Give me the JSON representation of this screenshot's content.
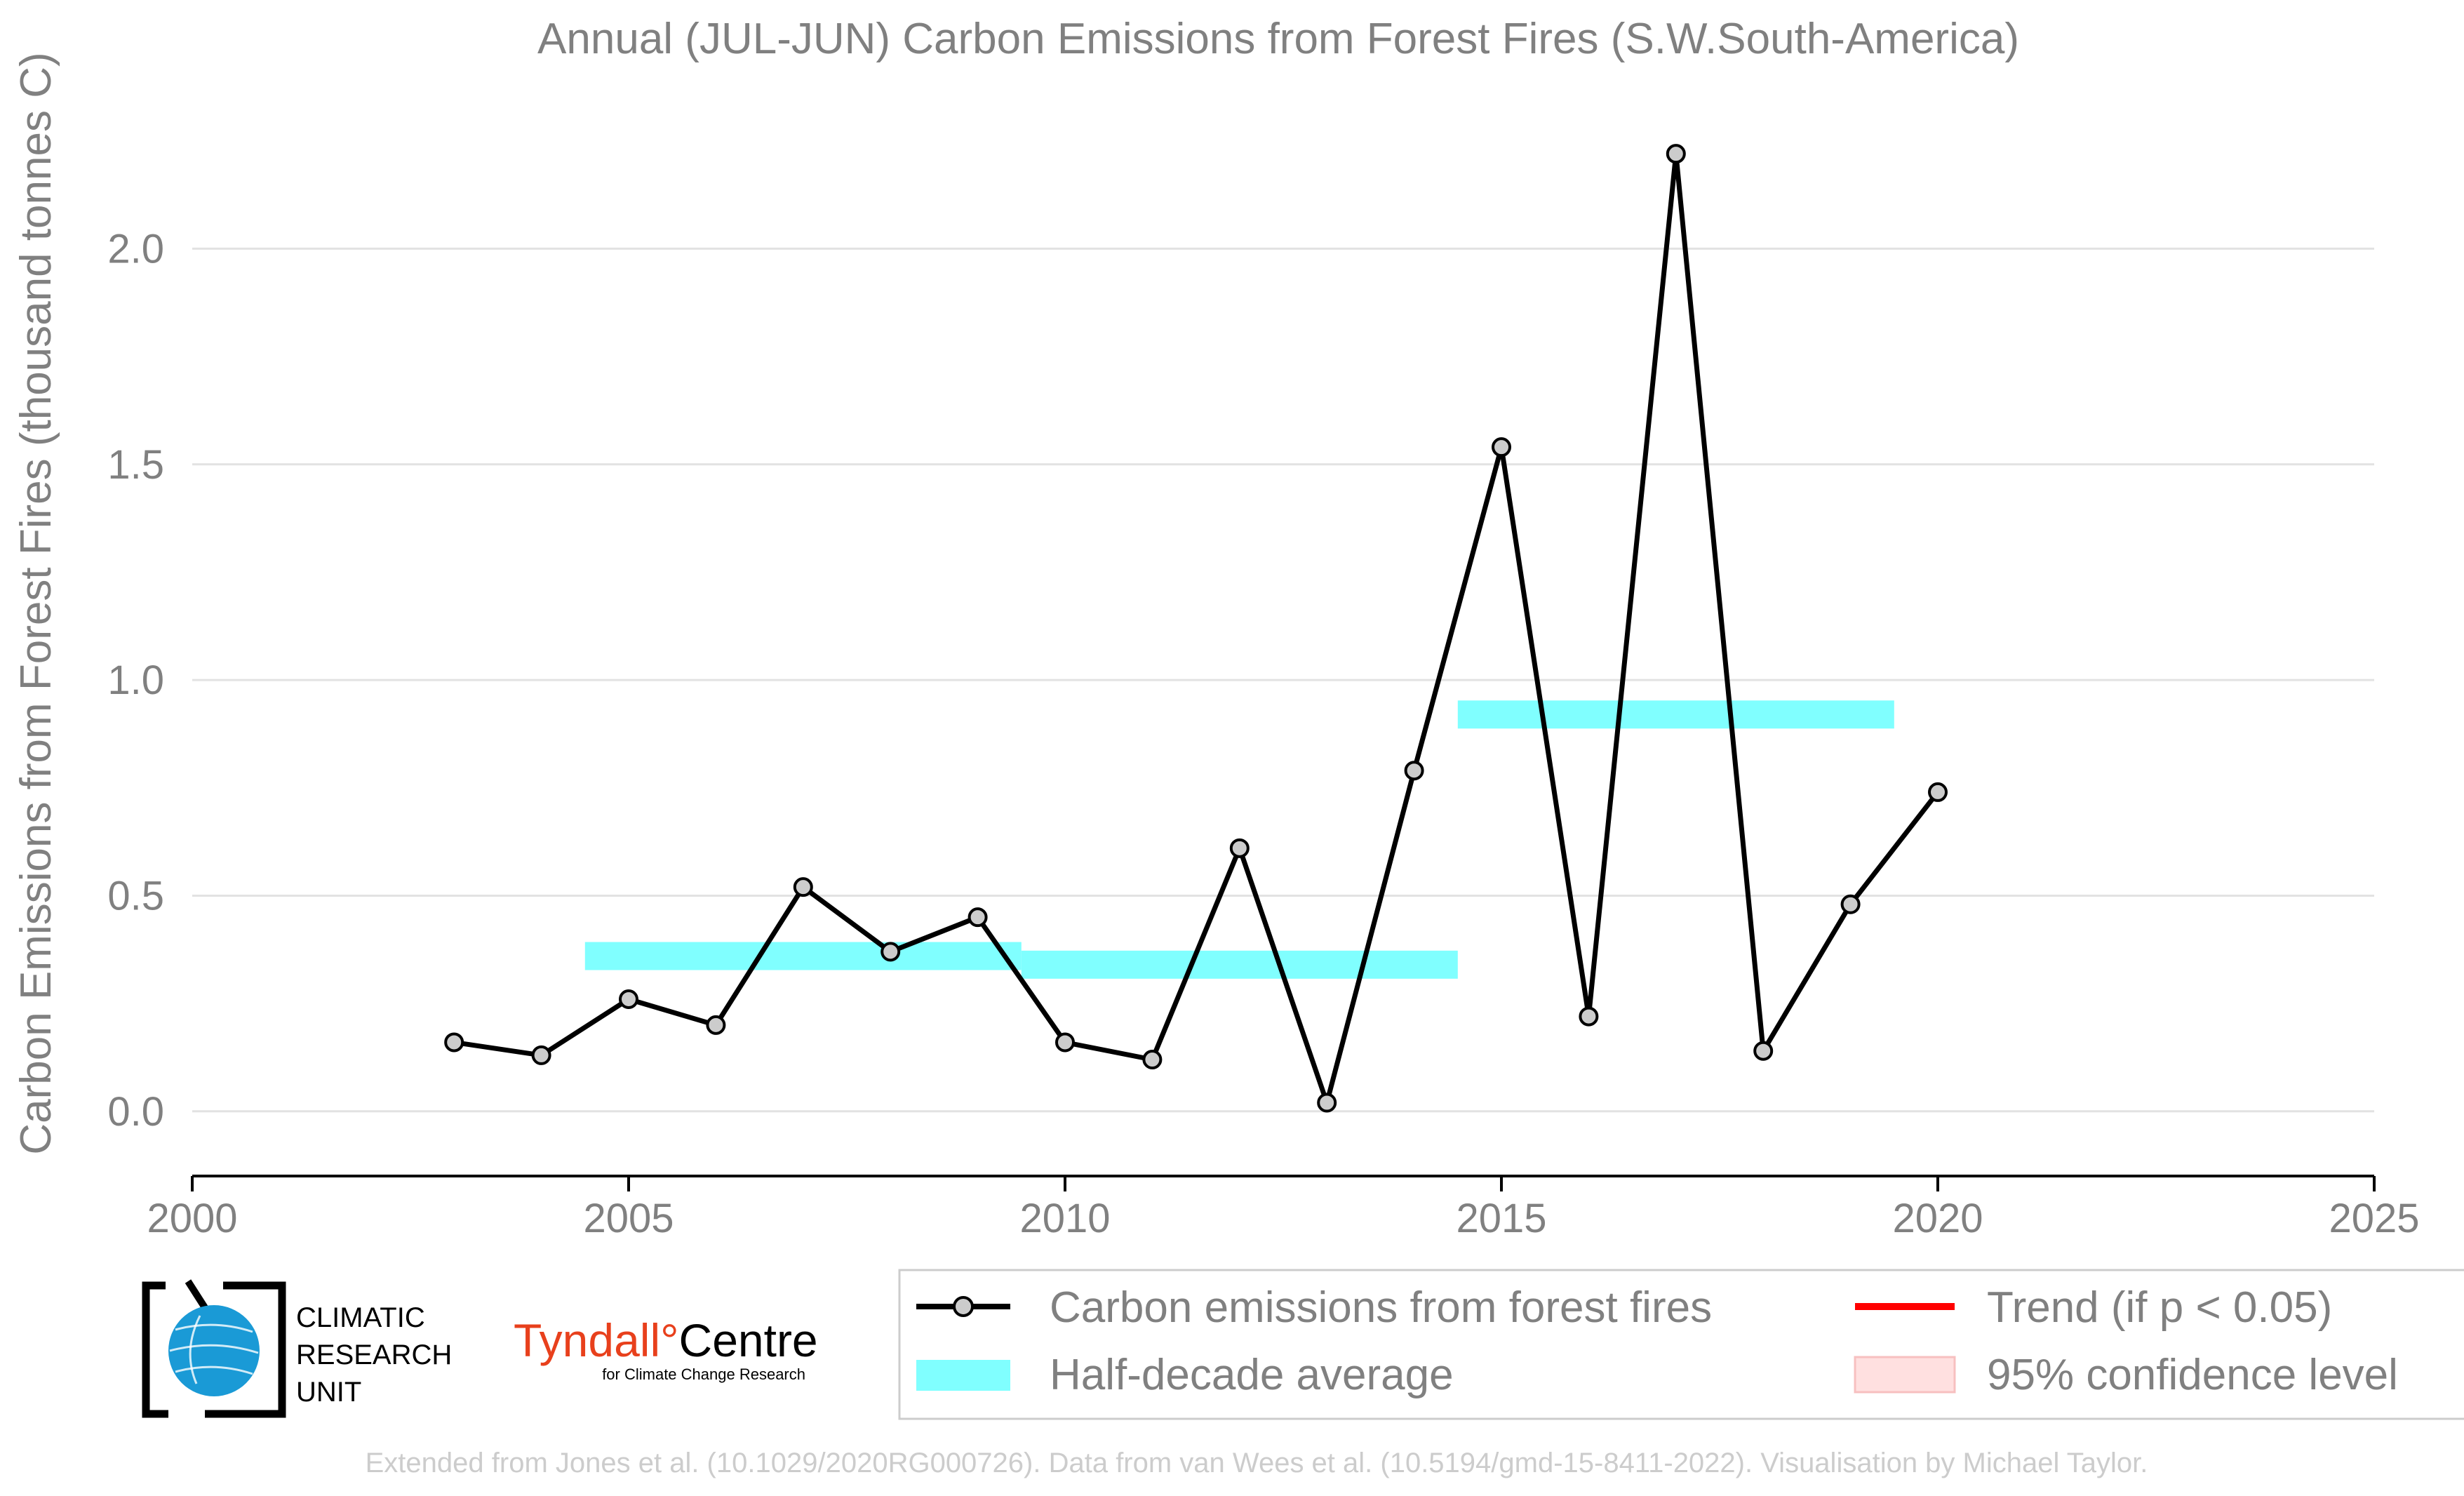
{
  "chart_data": {
    "type": "line",
    "title": "Annual (JUL-JUN) Carbon Emissions from Forest Fires (S.W.South-America)",
    "xlabel": "",
    "ylabel": "Carbon Emissions from Forest Fires (thousand tonnes C)",
    "xlim": [
      2000,
      2025
    ],
    "ylim": [
      -0.15,
      2.3
    ],
    "xticks": [
      2000,
      2005,
      2010,
      2015,
      2020,
      2025
    ],
    "xtick_labels": [
      "2000",
      "2005",
      "2010",
      "2015",
      "2020",
      "2025"
    ],
    "yticks": [
      0.0,
      0.5,
      1.0,
      1.5,
      2.0
    ],
    "ytick_labels": [
      "0.0",
      "0.5",
      "1.0",
      "1.5",
      "2.0"
    ],
    "grid": "horizontal",
    "legend_position": "bottom",
    "series": [
      {
        "name": "Carbon emissions from forest fires",
        "type": "line",
        "color": "#000000",
        "marker_color": "#cccccc",
        "x": [
          2003,
          2004,
          2005,
          2006,
          2007,
          2008,
          2009,
          2010,
          2011,
          2012,
          2013,
          2014,
          2015,
          2016,
          2017,
          2018,
          2019,
          2020
        ],
        "y": [
          0.16,
          0.13,
          0.26,
          0.2,
          0.52,
          0.37,
          0.45,
          0.16,
          0.12,
          0.61,
          0.02,
          0.79,
          1.54,
          0.22,
          2.22,
          0.14,
          0.48,
          0.74
        ]
      },
      {
        "name": "Half-decade average",
        "type": "segments",
        "color": "#80ffff",
        "segments": [
          {
            "x0": 2004.5,
            "x1": 2009.5,
            "y": 0.36
          },
          {
            "x0": 2009.5,
            "x1": 2014.5,
            "y": 0.34
          },
          {
            "x0": 2014.5,
            "x1": 2019.5,
            "y": 0.92
          }
        ]
      }
    ],
    "legend": [
      {
        "label": "Carbon emissions from forest fires",
        "kind": "line-marker",
        "color": "#000000"
      },
      {
        "label": "Trend (if p < 0.05)",
        "kind": "line",
        "color": "#ff0000"
      },
      {
        "label": "Half-decade average",
        "kind": "band",
        "color": "#80ffff"
      },
      {
        "label": "95% confidence level",
        "kind": "patch",
        "color": "#ffe0e0"
      }
    ]
  },
  "logos": {
    "cru_lines": [
      "CLIMATIC",
      "RESEARCH",
      "UNIT"
    ],
    "tyndall_main": "Tyndall",
    "tyndall_degree": "°",
    "tyndall_centre": "Centre",
    "tyndall_sub": "for Climate Change Research",
    "tyndall_color": "#e8401c",
    "cru_globe_color": "#1a9ad6"
  },
  "footer": "Extended from Jones et al. (10.1029/2020RG000726). Data from van Wees et al. (10.5194/gmd-15-8411-2022). Visualisation by Michael Taylor."
}
